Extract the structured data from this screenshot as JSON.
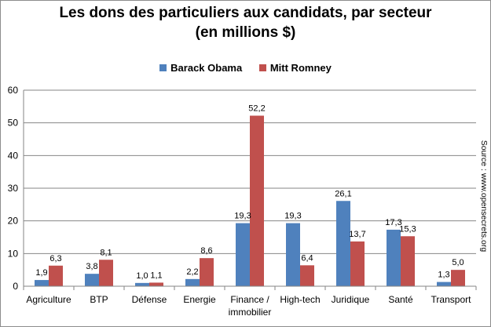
{
  "chart_data": {
    "type": "bar",
    "title": "Les dons des particuliers  aux candidats,  par secteur\n(en millions $)",
    "categories": [
      "Agriculture",
      "BTP",
      "Défense",
      "Energie",
      "Finance /\nimmobilier",
      "High-tech",
      "Juridique",
      "Santé",
      "Transport"
    ],
    "series": [
      {
        "name": "Barack Obama",
        "color": "#4f81bd",
        "values": [
          1.9,
          3.8,
          1.0,
          2.2,
          19.3,
          19.3,
          26.1,
          17.3,
          1.3
        ],
        "labels": [
          "1,9",
          "3,8",
          "1,0",
          "2,2",
          "19,3",
          "19,3",
          "26,1",
          "17,3",
          "1,3"
        ]
      },
      {
        "name": "Mitt Romney",
        "color": "#c0504d",
        "values": [
          6.3,
          8.1,
          1.1,
          8.6,
          52.2,
          6.4,
          13.7,
          15.3,
          5.0
        ],
        "labels": [
          "6,3",
          "8,1",
          "1,1",
          "8,6",
          "52,2",
          "6,4",
          "13,7",
          "15,3",
          "5,0"
        ]
      }
    ],
    "xlabel": "",
    "ylabel": "",
    "ylim": [
      0,
      60
    ],
    "yticks": [
      0,
      10,
      20,
      30,
      40,
      50,
      60
    ],
    "grid": true,
    "legend_position": "top",
    "source": "Source : www.opensecrets.org"
  }
}
